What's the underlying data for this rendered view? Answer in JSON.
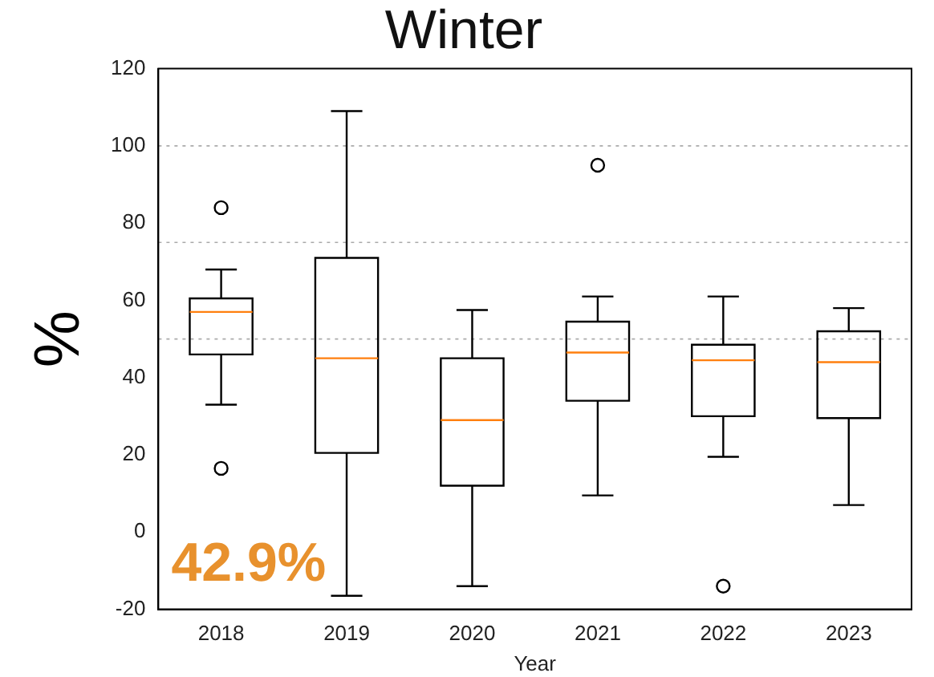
{
  "chart_data": {
    "type": "box",
    "title": "Winter",
    "xlabel": "Year",
    "ylabel": "%",
    "categories": [
      "2018",
      "2019",
      "2020",
      "2021",
      "2022",
      "2023"
    ],
    "boxes": [
      {
        "low": 33,
        "q1": 46,
        "median": 57,
        "q3": 60.5,
        "high": 68,
        "outliers": [
          84,
          16.5
        ]
      },
      {
        "low": -16.5,
        "q1": 20.5,
        "median": 45,
        "q3": 71,
        "high": 109
      },
      {
        "low": -14,
        "q1": 12,
        "median": 29,
        "q3": 45,
        "high": 57.5
      },
      {
        "low": 9.5,
        "q1": 34,
        "median": 46.5,
        "q3": 54.5,
        "high": 61,
        "outliers": [
          95
        ]
      },
      {
        "low": 19.5,
        "q1": 30,
        "median": 44.5,
        "q3": 48.5,
        "high": 61,
        "outliers": [
          -14
        ]
      },
      {
        "low": 7,
        "q1": 29.5,
        "median": 44,
        "q3": 52,
        "high": 58
      }
    ],
    "ylim": [
      -20,
      120
    ],
    "yticks": [
      -20,
      0,
      20,
      40,
      60,
      80,
      100,
      120
    ],
    "ref_lines": [
      {
        "axis": "y",
        "value": 100,
        "color": "#aaaaaa",
        "line_style": "dotted"
      },
      {
        "axis": "y",
        "value": 75,
        "color": "#aaaaaa",
        "line_style": "dotted"
      },
      {
        "axis": "y",
        "value": 50,
        "color": "#aaaaaa",
        "line_style": "dotted"
      }
    ],
    "annotations": [
      "42.9%"
    ],
    "grid": false,
    "legend": false
  }
}
